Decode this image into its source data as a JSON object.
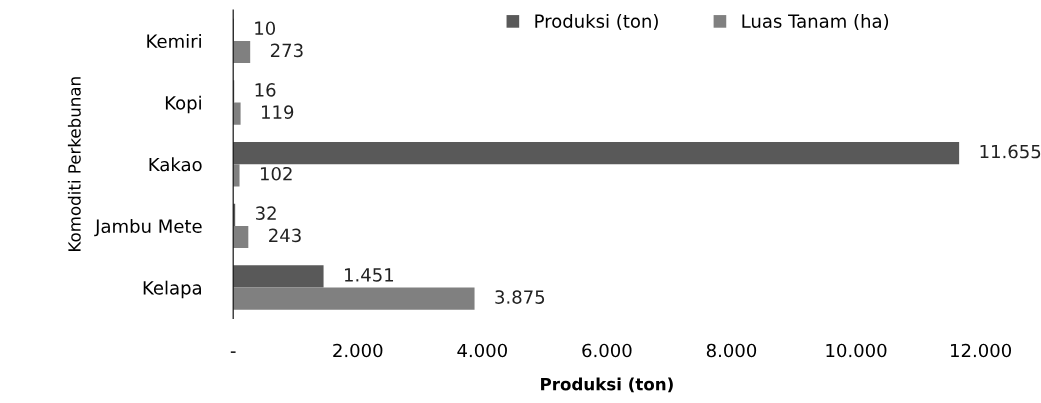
{
  "chart_data": {
    "type": "bar",
    "orientation": "horizontal",
    "xlabel": "Produksi (ton)",
    "ylabel": "Komoditi Perkebunan",
    "categories": [
      "Kemiri",
      "Kopi",
      "Kakao",
      "Jambu Mete",
      "Kelapa"
    ],
    "series": [
      {
        "name": "Produksi (ton)",
        "color": "#595959",
        "values": [
          10,
          16,
          11655,
          32,
          1451
        ],
        "value_labels": [
          "10",
          "16",
          "11.655",
          "32",
          "1.451"
        ]
      },
      {
        "name": "Luas Tanam (ha)",
        "color": "#808080",
        "values": [
          273,
          119,
          102,
          243,
          3875
        ],
        "value_labels": [
          "273",
          "119",
          "102",
          "243",
          "3.875"
        ]
      }
    ],
    "xlim": [
      0,
      12000
    ],
    "xticks": [
      {
        "value": 0,
        "label": "-"
      },
      {
        "value": 2000,
        "label": "2.000"
      },
      {
        "value": 4000,
        "label": "4.000"
      },
      {
        "value": 6000,
        "label": "6.000"
      },
      {
        "value": 8000,
        "label": "8.000"
      },
      {
        "value": 10000,
        "label": "10.000"
      },
      {
        "value": 12000,
        "label": "12.000"
      }
    ],
    "legend": "top right",
    "grid": false
  }
}
